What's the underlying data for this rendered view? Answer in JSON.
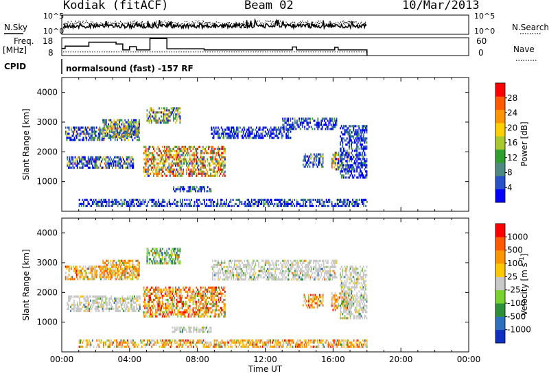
{
  "header": {
    "station": "Kodiak (fitACF)",
    "beam": "Beam 02",
    "date": "10/Mar/2013"
  },
  "top_panels": {
    "nsky_label": "N.Sky",
    "nsky_ticks": [
      "10^5",
      "10^0"
    ],
    "nsearch_label": "N.Search",
    "freq_label_1": "Freq.",
    "freq_label_2": "[MHz]",
    "freq_ticks": [
      "18",
      "8"
    ],
    "nave_ticks": [
      "60",
      "0"
    ],
    "nave_label": "Nave",
    "cpid_label": "CPID",
    "cpid_text": "normalsound (fast) -157 RF"
  },
  "colors": {
    "power_scale": [
      "#0000ff",
      "#2a52c8",
      "#4f8a82",
      "#2fa030",
      "#a8c832",
      "#ffd000",
      "#ff9600",
      "#ff5a00",
      "#ff0000"
    ],
    "velocity_scale": [
      "#1030c0",
      "#2f6fc0",
      "#2e8f3a",
      "#78d230",
      "#c8c8c8",
      "#ffc800",
      "#ff9600",
      "#ff5a00",
      "#ff0000"
    ]
  },
  "chart_data": [
    {
      "type": "line",
      "title": "",
      "series": [
        {
          "name": "N.Sky",
          "style": "solid",
          "level": "high-noise"
        },
        {
          "name": "N.Search",
          "style": "dotted",
          "level": "higher-noise"
        }
      ],
      "y_ticks": [
        "10^5",
        "10^0"
      ],
      "y2_ticks": [
        "10^5",
        "10^0"
      ]
    },
    {
      "type": "line",
      "series": [
        {
          "name": "Freq.",
          "style": "solid"
        },
        {
          "name": "Nave",
          "style": "dotted"
        }
      ],
      "freq_steps": [
        {
          "t": 0.0,
          "f": 12.0
        },
        {
          "t": 0.2,
          "f": 12.0
        },
        {
          "t": 0.2,
          "f": 13.3
        },
        {
          "t": 1.6,
          "f": 13.3
        },
        {
          "t": 1.6,
          "f": 15.5
        },
        {
          "t": 3.2,
          "f": 15.5
        },
        {
          "t": 3.2,
          "f": 14.5
        },
        {
          "t": 3.6,
          "f": 14.5
        },
        {
          "t": 3.6,
          "f": 11.2
        },
        {
          "t": 4.0,
          "f": 11.2
        },
        {
          "t": 4.0,
          "f": 13.0
        },
        {
          "t": 4.4,
          "f": 13.0
        },
        {
          "t": 4.4,
          "f": 11.2
        },
        {
          "t": 5.2,
          "f": 11.2
        },
        {
          "t": 5.2,
          "f": 17.5
        },
        {
          "t": 6.2,
          "f": 17.5
        },
        {
          "t": 6.2,
          "f": 11.8
        },
        {
          "t": 8.4,
          "f": 11.8
        },
        {
          "t": 8.4,
          "f": 11.2
        },
        {
          "t": 13.6,
          "f": 11.2
        },
        {
          "t": 13.6,
          "f": 12.8
        },
        {
          "t": 13.85,
          "f": 12.8
        },
        {
          "t": 13.85,
          "f": 11.2
        },
        {
          "t": 16.1,
          "f": 11.2
        },
        {
          "t": 16.1,
          "f": 12.6
        },
        {
          "t": 16.3,
          "f": 12.6
        },
        {
          "t": 16.3,
          "f": 11.2
        },
        {
          "t": 18.0,
          "f": 11.2
        },
        {
          "t": 18.0,
          "f": 8.0
        }
      ],
      "nave_level": 12,
      "y_ticks": [
        "18",
        "8"
      ],
      "y2_ticks": [
        "60",
        "0"
      ]
    },
    {
      "type": "heatmap",
      "quantity": "Power",
      "xlabel": "Time UT",
      "ylabel": "Slant Range [km]",
      "colorbar_label": "Power [dB]",
      "colorbar_ticks": [
        "28",
        "24",
        "20",
        "16",
        "12",
        "8",
        "4"
      ],
      "x_range_hours": [
        0,
        24
      ],
      "y_range_km": [
        0,
        4500
      ],
      "y_ticks": [
        1000,
        2000,
        3000,
        4000
      ],
      "x_ticks": [
        "00:00",
        "04:00",
        "08:00",
        "12:00",
        "16:00",
        "20:00",
        "00:00"
      ],
      "data_end_hour": 18,
      "regions": [
        {
          "t0": 0.2,
          "t1": 4.6,
          "r0": 2420,
          "r1": 2850,
          "level": "low-mid"
        },
        {
          "t0": 0.3,
          "t1": 4.2,
          "r0": 1500,
          "r1": 1850,
          "level": "low-mid"
        },
        {
          "t0": 2.4,
          "t1": 4.6,
          "r0": 2500,
          "r1": 3100,
          "level": "mid"
        },
        {
          "t0": 4.8,
          "t1": 9.6,
          "r0": 1200,
          "r1": 2200,
          "level": "high"
        },
        {
          "t0": 5.0,
          "t1": 7.0,
          "r0": 3000,
          "r1": 3500,
          "level": "mid"
        },
        {
          "t0": 8.8,
          "t1": 13.5,
          "r0": 2450,
          "r1": 2850,
          "level": "low"
        },
        {
          "t0": 13.0,
          "t1": 16.2,
          "r0": 2750,
          "r1": 3150,
          "level": "low"
        },
        {
          "t0": 14.2,
          "t1": 15.4,
          "r0": 1500,
          "r1": 1950,
          "level": "low-mid"
        },
        {
          "t0": 15.9,
          "t1": 17.0,
          "r0": 1400,
          "r1": 2000,
          "level": "mid-high"
        },
        {
          "t0": 16.4,
          "t1": 18.0,
          "r0": 1100,
          "r1": 2900,
          "level": "low"
        },
        {
          "t0": 6.5,
          "t1": 8.8,
          "r0": 650,
          "r1": 850,
          "level": "low"
        },
        {
          "t0": 1.0,
          "t1": 18.0,
          "r0": 180,
          "r1": 420,
          "level": "low"
        }
      ]
    },
    {
      "type": "heatmap",
      "quantity": "Velocity",
      "xlabel": "Time UT",
      "ylabel": "Slant Range [km]",
      "colorbar_label": "Velocity [m s-1]",
      "colorbar_unit_base": "Velocity [m s",
      "colorbar_unit_exp": "-1",
      "colorbar_unit_close": "]",
      "colorbar_ticks": [
        "1000",
        "500",
        "100",
        "25",
        "-25",
        "-100",
        "-500",
        "-1000"
      ],
      "x_range_hours": [
        0,
        24
      ],
      "y_range_km": [
        0,
        4500
      ],
      "y_ticks": [
        1000,
        2000,
        3000,
        4000
      ],
      "x_ticks": [
        "00:00",
        "04:00",
        "08:00",
        "12:00",
        "16:00",
        "20:00",
        "00:00"
      ],
      "data_end_hour": 18,
      "regions": [
        {
          "t0": 0.2,
          "t1": 4.6,
          "r0": 2450,
          "r1": 2900,
          "level": "orange-mix"
        },
        {
          "t0": 0.3,
          "t1": 4.6,
          "r0": 1350,
          "r1": 1900,
          "level": "gray"
        },
        {
          "t0": 2.4,
          "t1": 4.6,
          "r0": 2500,
          "r1": 3100,
          "level": "orange-mix"
        },
        {
          "t0": 4.8,
          "t1": 9.6,
          "r0": 1200,
          "r1": 2200,
          "level": "orange-red"
        },
        {
          "t0": 5.0,
          "t1": 7.0,
          "r0": 3000,
          "r1": 3500,
          "level": "green-mix"
        },
        {
          "t0": 8.8,
          "t1": 16.2,
          "r0": 2450,
          "r1": 3100,
          "level": "gray"
        },
        {
          "t0": 14.2,
          "t1": 15.4,
          "r0": 1500,
          "r1": 1950,
          "level": "orange-mix"
        },
        {
          "t0": 15.9,
          "t1": 17.0,
          "r0": 1400,
          "r1": 2000,
          "level": "orange-mix"
        },
        {
          "t0": 16.4,
          "t1": 18.0,
          "r0": 1100,
          "r1": 2900,
          "level": "gray"
        },
        {
          "t0": 6.5,
          "t1": 8.8,
          "r0": 650,
          "r1": 850,
          "level": "gray"
        },
        {
          "t0": 1.0,
          "t1": 18.0,
          "r0": 180,
          "r1": 420,
          "level": "orange-mix"
        }
      ]
    }
  ]
}
